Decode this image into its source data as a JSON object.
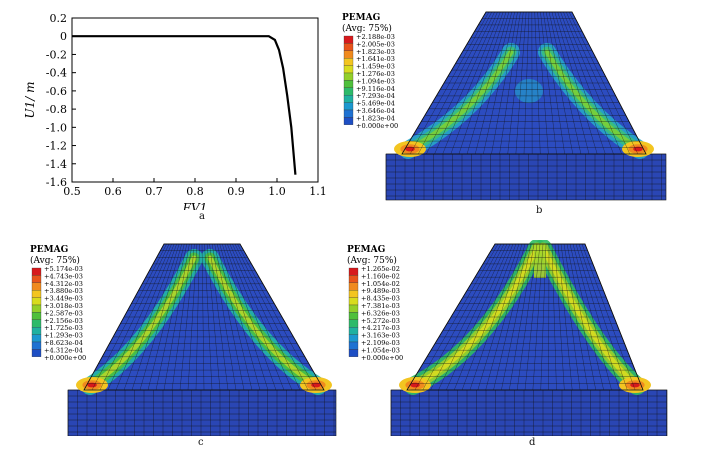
{
  "captions": {
    "a": "a",
    "b": "b",
    "c": "c",
    "d": "d"
  },
  "chart_data": {
    "type": "line",
    "xlabel": "FV1",
    "ylabel": "U1/ m",
    "xlim": [
      0.5,
      1.1
    ],
    "ylim": [
      -1.6,
      0.2
    ],
    "xticks": [
      "0.5",
      "0.6",
      "0.7",
      "0.8",
      "0.9",
      "1.0",
      "1.1"
    ],
    "yticks": [
      "0.2",
      "0",
      "-0.2",
      "-0.4",
      "-0.6",
      "-0.8",
      "-1.0",
      "-1.2",
      "-1.4",
      "-1.6"
    ],
    "grid": false,
    "series": [
      {
        "x": [
          0.5,
          0.6,
          0.7,
          0.8,
          0.9,
          0.98,
          0.995,
          1.005,
          1.015,
          1.025,
          1.035,
          1.045
        ],
        "y": [
          0,
          0,
          0,
          0,
          0,
          0,
          -0.04,
          -0.15,
          -0.35,
          -0.65,
          -1.0,
          -1.52
        ]
      }
    ]
  },
  "legends": {
    "b": {
      "title": [
        "PEMAG",
        "(Avg: 75%)"
      ],
      "values": [
        "+2.188e-03",
        "+2.005e-03",
        "+1.823e-03",
        "+1.641e-03",
        "+1.459e-03",
        "+1.276e-03",
        "+1.094e-03",
        "+9.116e-04",
        "+7.293e-04",
        "+5.469e-04",
        "+3.646e-04",
        "+1.823e-04",
        "+0.000e+00"
      ]
    },
    "c": {
      "title": [
        "PEMAG",
        "(Avg: 75%)"
      ],
      "values": [
        "+5.174e-03",
        "+4.743e-03",
        "+4.312e-03",
        "+3.880e-03",
        "+3.449e-03",
        "+3.018e-03",
        "+2.587e-03",
        "+2.156e-03",
        "+1.725e-03",
        "+1.293e-03",
        "+8.623e-04",
        "+4.312e-04",
        "+0.000e+00"
      ]
    },
    "d": {
      "title": [
        "PEMAG",
        "(Avg: 75%)"
      ],
      "values": [
        "+1.265e-02",
        "+1.160e-02",
        "+1.054e-02",
        "+9.489e-03",
        "+8.435e-03",
        "+7.381e-03",
        "+6.326e-03",
        "+5.272e-03",
        "+4.217e-03",
        "+3.163e-03",
        "+2.109e-03",
        "+1.054e-03",
        "+0.000e+00"
      ]
    }
  },
  "colors": {
    "scale": [
      "#d7191c",
      "#e8531a",
      "#f08a1e",
      "#f3c521",
      "#d8dc1f",
      "#93cf2a",
      "#4fc03c",
      "#2dba6a",
      "#1fb1a0",
      "#1c98cf",
      "#1f72d2",
      "#1e4fc4",
      "#21309e"
    ]
  }
}
